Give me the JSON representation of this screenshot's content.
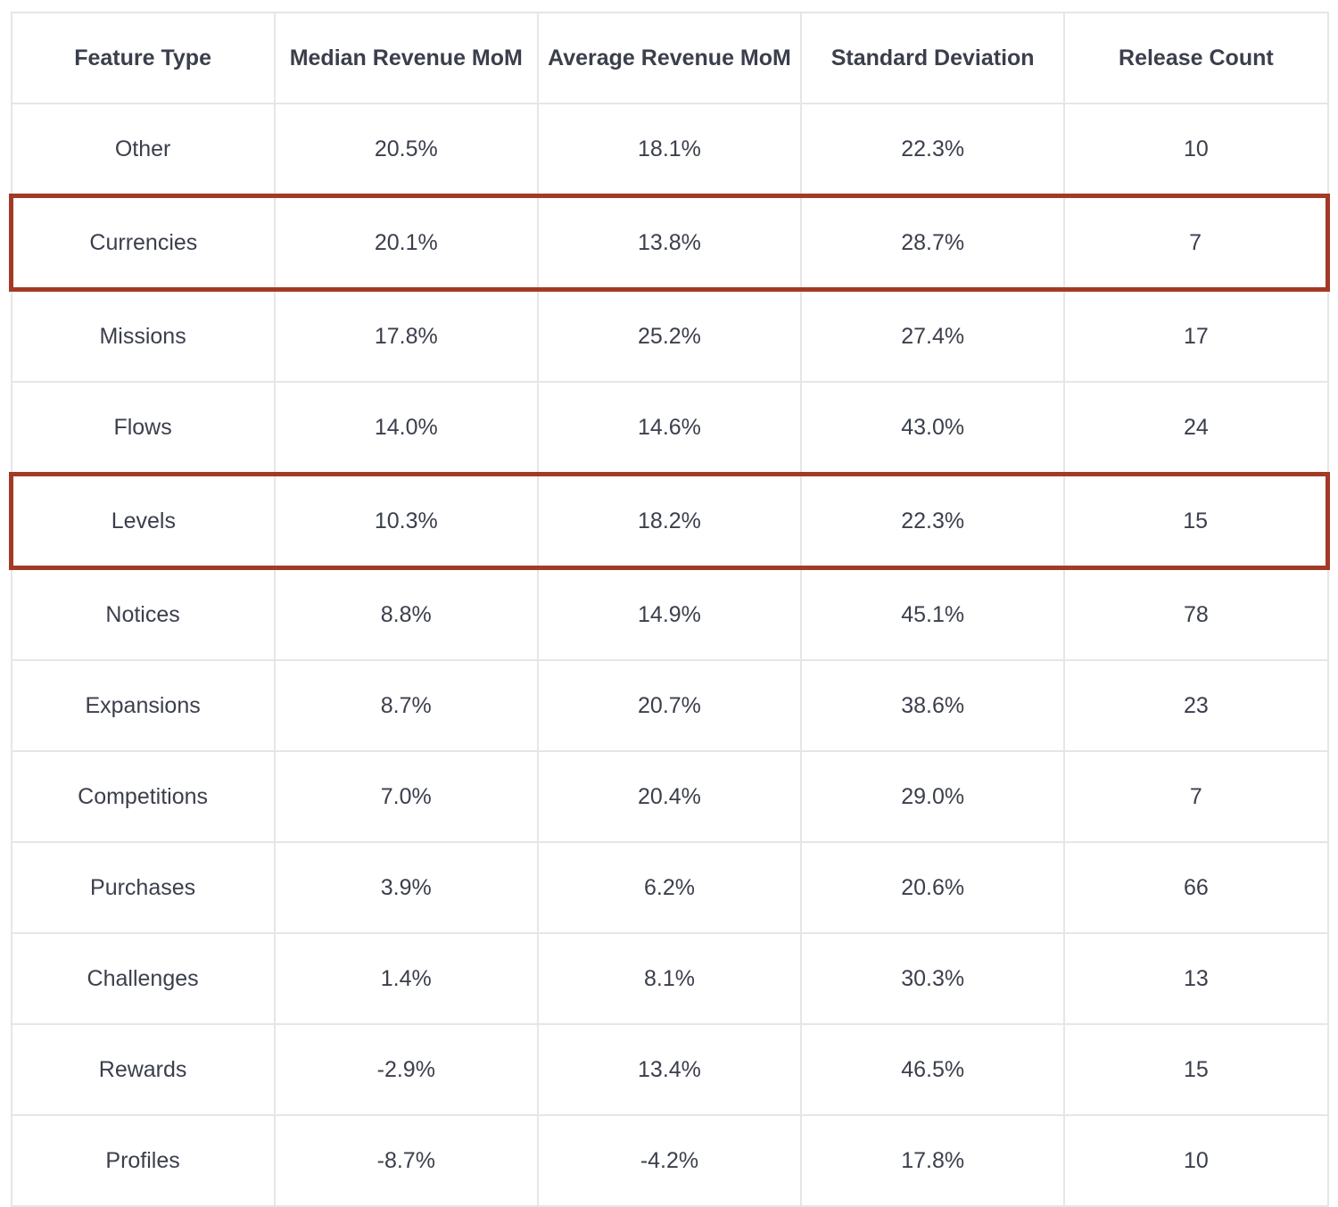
{
  "colors": {
    "highlight_border": "#a23a25",
    "grid_line": "#e6e6e6",
    "text": "#3b3f4c"
  },
  "chart_data": {
    "type": "table",
    "columns": [
      "Feature Type",
      "Median Revenue MoM",
      "Average Revenue MoM",
      "Standard Deviation",
      "Release Count"
    ],
    "rows": [
      {
        "cells": [
          "Other",
          "20.5%",
          "18.1%",
          "22.3%",
          "10"
        ],
        "highlighted": false
      },
      {
        "cells": [
          "Currencies",
          "20.1%",
          "13.8%",
          "28.7%",
          "7"
        ],
        "highlighted": true
      },
      {
        "cells": [
          "Missions",
          "17.8%",
          "25.2%",
          "27.4%",
          "17"
        ],
        "highlighted": false
      },
      {
        "cells": [
          "Flows",
          "14.0%",
          "14.6%",
          "43.0%",
          "24"
        ],
        "highlighted": false
      },
      {
        "cells": [
          "Levels",
          "10.3%",
          "18.2%",
          "22.3%",
          "15"
        ],
        "highlighted": true
      },
      {
        "cells": [
          "Notices",
          "8.8%",
          "14.9%",
          "45.1%",
          "78"
        ],
        "highlighted": false
      },
      {
        "cells": [
          "Expansions",
          "8.7%",
          "20.7%",
          "38.6%",
          "23"
        ],
        "highlighted": false
      },
      {
        "cells": [
          "Competitions",
          "7.0%",
          "20.4%",
          "29.0%",
          "7"
        ],
        "highlighted": false
      },
      {
        "cells": [
          "Purchases",
          "3.9%",
          "6.2%",
          "20.6%",
          "66"
        ],
        "highlighted": false
      },
      {
        "cells": [
          "Challenges",
          "1.4%",
          "8.1%",
          "30.3%",
          "13"
        ],
        "highlighted": false
      },
      {
        "cells": [
          "Rewards",
          "-2.9%",
          "13.4%",
          "46.5%",
          "15"
        ],
        "highlighted": false
      },
      {
        "cells": [
          "Profiles",
          "-8.7%",
          "-4.2%",
          "17.8%",
          "10"
        ],
        "highlighted": false
      }
    ]
  }
}
